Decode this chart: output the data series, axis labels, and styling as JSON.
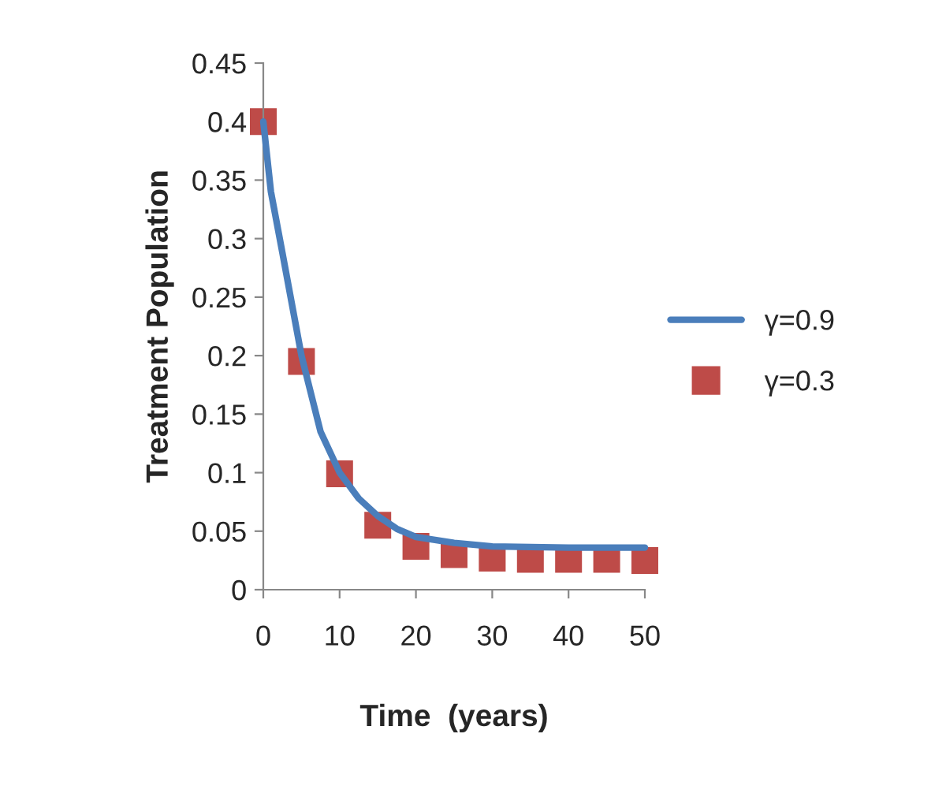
{
  "chart_data": {
    "type": "line",
    "xlabel": "Time  (years)",
    "ylabel": "Treatment Population",
    "xlim": [
      0,
      50
    ],
    "xticks": [
      0,
      10,
      20,
      30,
      40,
      50
    ],
    "ylim": [
      0,
      0.45
    ],
    "yticks": [
      0,
      0.05,
      0.1,
      0.15,
      0.2,
      0.25,
      0.3,
      0.35,
      0.4,
      0.45
    ],
    "grid": false,
    "legend": "right",
    "series": [
      {
        "name": "γ=0.9",
        "color": "#4a7ebb",
        "marker": "none",
        "x": [
          0,
          1,
          2.5,
          5,
          7.5,
          10,
          12.5,
          15,
          17.5,
          20,
          25,
          30,
          40,
          50
        ],
        "values": [
          0.4,
          0.34,
          0.288,
          0.2,
          0.135,
          0.1,
          0.078,
          0.063,
          0.052,
          0.045,
          0.04,
          0.037,
          0.036,
          0.036
        ]
      },
      {
        "name": "γ=0.3",
        "type": "scatter",
        "color": "#be4b48",
        "marker": "square",
        "x": [
          0,
          5,
          10,
          15,
          20,
          25,
          30,
          35,
          40,
          45,
          50
        ],
        "values": [
          0.4,
          0.195,
          0.099,
          0.055,
          0.037,
          0.03,
          0.027,
          0.026,
          0.026,
          0.026,
          0.025
        ]
      }
    ]
  }
}
